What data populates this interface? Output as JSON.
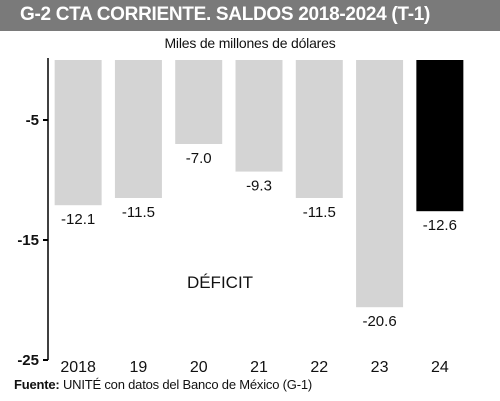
{
  "header": {
    "title": "G-2   CTA CORRIENTE. SALDOS 2018-2024 (T-1)",
    "subtitle": "Miles de millones de dólares"
  },
  "footer": {
    "source_label": "Fuente:",
    "source_text": " UNITÉ con datos del Banco de México (G-1)"
  },
  "colors": {
    "title_bg": "#7a7a7a",
    "bar_default": "#d4d4d4",
    "bar_highlight": "#000000",
    "axis": "#000000"
  },
  "chart_data": {
    "type": "bar",
    "title": "CTA CORRIENTE. SALDOS 2018-2024 (T-1)",
    "ylabel": "Miles de millones de dólares",
    "categories": [
      "2018",
      "19",
      "20",
      "21",
      "22",
      "23",
      "24"
    ],
    "values": [
      -12.1,
      -11.5,
      -7.0,
      -9.3,
      -11.5,
      -20.6,
      -12.6
    ],
    "value_labels": [
      "-12.1",
      "-11.5",
      "-7.0",
      "-9.3",
      "-11.5",
      "-20.6",
      "-12.6"
    ],
    "highlight_index": 6,
    "ylim": [
      -25,
      0
    ],
    "y_ticks": [
      -5,
      -15,
      -25
    ],
    "y_tick_labels": [
      "-5",
      "-15",
      "-25"
    ],
    "annotation": "DÉFICIT",
    "grid": false
  }
}
